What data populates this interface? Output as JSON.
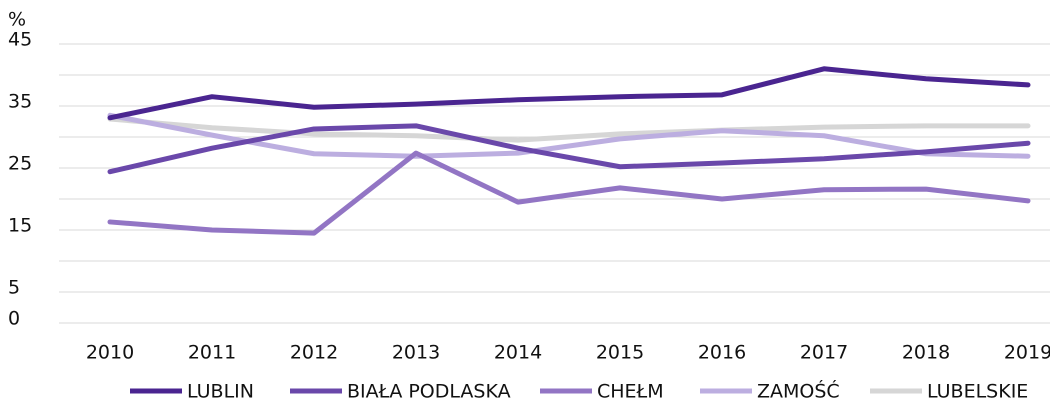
{
  "chart_data": {
    "type": "line",
    "y_label": "%",
    "categories": [
      "2010",
      "2011",
      "2012",
      "2013",
      "2014",
      "2015",
      "2016",
      "2017",
      "2018",
      "2019"
    ],
    "series": [
      {
        "name": "LUBLIN",
        "color": "#4a2590",
        "values": [
          33.1,
          36.5,
          34.8,
          35.3,
          36.0,
          36.5,
          36.8,
          41.0,
          39.4,
          38.4
        ]
      },
      {
        "name": "BIAŁA PODLASKA",
        "color": "#6a48aa",
        "values": [
          24.4,
          28.2,
          31.3,
          31.8,
          28.2,
          25.2,
          25.8,
          26.5,
          27.6,
          29.0
        ]
      },
      {
        "name": "CHEŁM",
        "color": "#9275c4",
        "values": [
          16.3,
          15.0,
          14.5,
          27.4,
          19.5,
          21.8,
          20.0,
          21.5,
          21.6,
          19.7
        ]
      },
      {
        "name": "ZAMOŚĆ",
        "color": "#bcaee0",
        "values": [
          33.5,
          30.3,
          27.3,
          26.9,
          27.4,
          29.7,
          31.0,
          30.2,
          27.3,
          26.9
        ]
      },
      {
        "name": "LUBELSKIE",
        "color": "#d6d6d6",
        "values": [
          32.9,
          31.5,
          30.5,
          30.2,
          29.5,
          30.5,
          31.1,
          31.6,
          31.8,
          31.8
        ]
      }
    ],
    "ylim": [
      0,
      45
    ],
    "yticks": [
      0,
      5,
      15,
      25,
      35,
      45
    ],
    "minor_yticks": [
      10,
      20,
      30,
      40
    ],
    "grid": true,
    "legend": "bottom"
  }
}
